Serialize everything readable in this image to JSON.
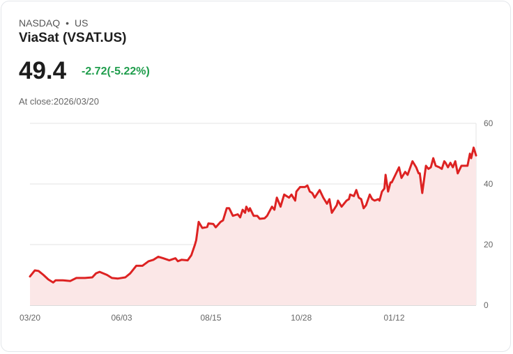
{
  "header": {
    "exchange": "NASDAQ",
    "separator": "•",
    "market": "US",
    "name": "ViaSat (VSAT.US)",
    "price": "49.4",
    "change": "-2.72(-5.22%)",
    "close_label": "At close:2026/03/20"
  },
  "colors": {
    "line": "#dd2222",
    "fill": "#fbe7e7",
    "change": "#1f9d4c",
    "grid": "#e3e3e3"
  },
  "chart_data": {
    "type": "area",
    "title": "ViaSat (VSAT.US)",
    "xlabel": "",
    "ylabel": "",
    "ylim": [
      0,
      60
    ],
    "xlim": [
      0,
      365
    ],
    "yticks": [
      0,
      20,
      40,
      60
    ],
    "xtick_labels": [
      "03/20",
      "06/03",
      "08/15",
      "10/28",
      "01/12"
    ],
    "xtick_days": [
      0,
      75,
      148,
      222,
      298
    ],
    "grid": true,
    "x_unit": "days since 2025/03/20",
    "x": [
      0,
      4,
      7,
      11,
      15,
      19,
      21,
      27,
      33,
      38,
      45,
      51,
      54,
      57,
      63,
      67,
      72,
      78,
      82,
      87,
      92,
      97,
      101,
      105,
      109,
      114,
      119,
      121,
      124,
      129,
      132,
      135,
      136,
      138,
      141,
      145,
      146,
      150,
      152,
      156,
      158,
      161,
      163,
      166,
      170,
      172,
      174,
      176,
      177,
      179,
      180,
      183,
      186,
      188,
      192,
      194,
      198,
      200,
      202,
      205,
      208,
      212,
      214,
      217,
      218,
      221,
      225,
      227,
      229,
      231,
      233,
      237,
      240,
      243,
      245,
      247,
      251,
      252,
      255,
      259,
      261,
      262,
      265,
      267,
      269,
      271,
      273,
      275,
      278,
      280,
      282,
      285,
      286,
      288,
      290,
      291,
      293,
      295,
      296,
      299,
      302,
      304,
      307,
      309,
      313,
      316,
      318,
      319,
      321,
      324,
      326,
      328,
      330,
      332,
      335,
      337,
      339,
      340,
      342,
      344,
      346,
      348,
      350,
      353,
      358,
      360,
      361,
      363,
      365
    ],
    "y": [
      9.5,
      11.5,
      11.3,
      10,
      8.5,
      7.5,
      8.2,
      8.2,
      8,
      9,
      9,
      9.2,
      10.5,
      11,
      10,
      9,
      8.8,
      9.2,
      10.5,
      13,
      13,
      14.5,
      15,
      16,
      15.5,
      14.8,
      15.5,
      14.5,
      15,
      14.8,
      16.5,
      20,
      21.5,
      27.5,
      25.5,
      25.8,
      27,
      26.8,
      25.7,
      27.5,
      28,
      32,
      32,
      29.5,
      30,
      29,
      31.5,
      30.5,
      32.5,
      31,
      32,
      29.5,
      29.5,
      28.5,
      28.7,
      29.5,
      32.5,
      31.5,
      35.5,
      32.5,
      36.5,
      35.5,
      36.5,
      34.5,
      37.5,
      39,
      39,
      39.5,
      37.5,
      37,
      35.5,
      38,
      35.5,
      33.5,
      35,
      30.5,
      33,
      34.5,
      32.5,
      34.5,
      35,
      36.5,
      36,
      38,
      35.5,
      35,
      32,
      33,
      36.5,
      35,
      34.5,
      35,
      34.5,
      37.5,
      38.5,
      43,
      37.5,
      40.5,
      40.5,
      43,
      45.5,
      42,
      44,
      43,
      47.5,
      45.5,
      43.5,
      43.5,
      37,
      46,
      45,
      45.5,
      48.5,
      46,
      45.5,
      45,
      47.5,
      47,
      45.5,
      47,
      45.5,
      47.5,
      43.5,
      46,
      46,
      50,
      48.5,
      52,
      49.4
    ]
  }
}
